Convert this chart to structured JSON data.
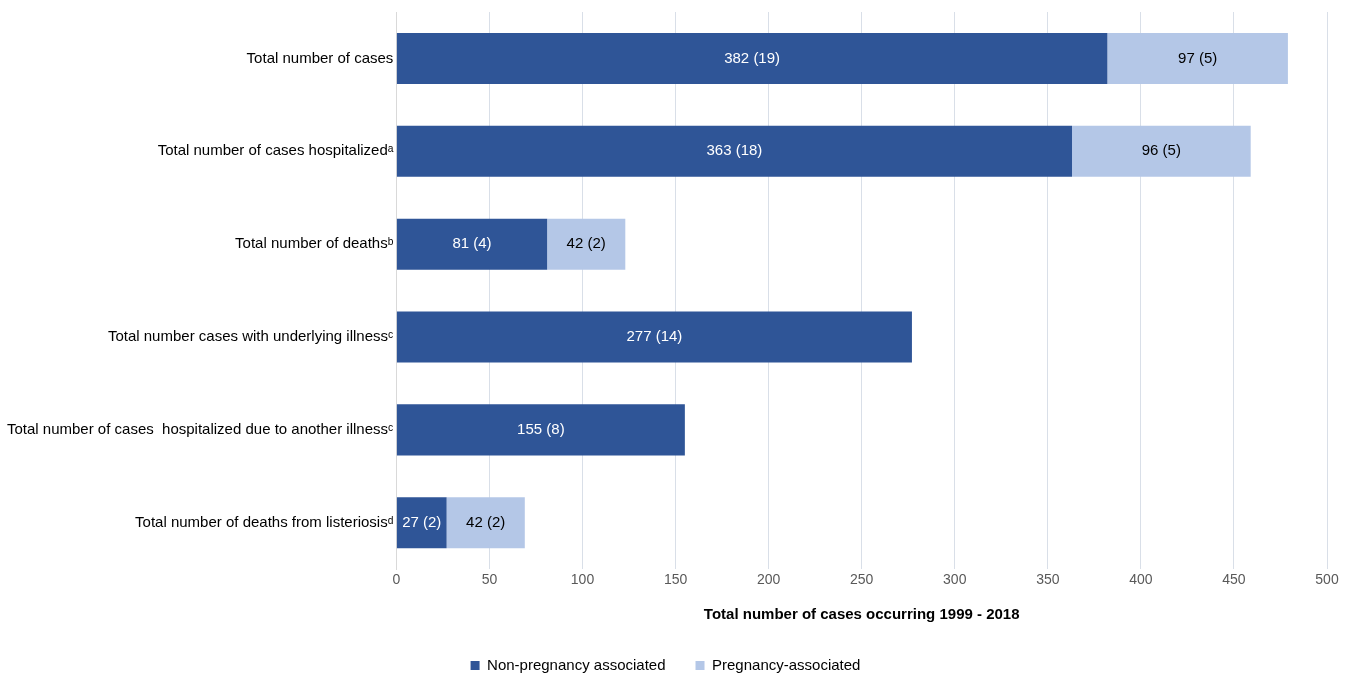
{
  "chart_data": {
    "type": "bar",
    "orientation": "horizontal",
    "stacked": true,
    "xlabel": "Total number of cases occurring 1999 - 2018",
    "categories": [
      "Total number of cases",
      "Total number of cases hospitalizedᵃ",
      "Total number of deathsᵇ",
      "Total number cases with underlying illnessᶜ",
      "Total number of cases  hospitalized due to another illnessᶜ",
      "Total number of deaths from listeriosisᵈ"
    ],
    "series": [
      {
        "name": "Non-pregnancy associated",
        "color": "#2f5597",
        "values": [
          382,
          363,
          81,
          277,
          155,
          27
        ],
        "value_labels": [
          "382 (19)",
          "363 (18)",
          "81 (4)",
          "277 (14)",
          "155 (8)",
          "27 (2)"
        ]
      },
      {
        "name": "Pregnancy-associated",
        "color": "#b4c7e7",
        "values": [
          97,
          96,
          42,
          null,
          null,
          42
        ],
        "value_labels": [
          "97 (5)",
          "96 (5)",
          "42 (2)",
          null,
          null,
          "42 (2)"
        ]
      }
    ],
    "xlim": [
      0,
      500
    ],
    "xticks": [
      0,
      50,
      100,
      150,
      200,
      250,
      300,
      350,
      400,
      450,
      500
    ],
    "grid": "x",
    "legend": "bottom"
  }
}
